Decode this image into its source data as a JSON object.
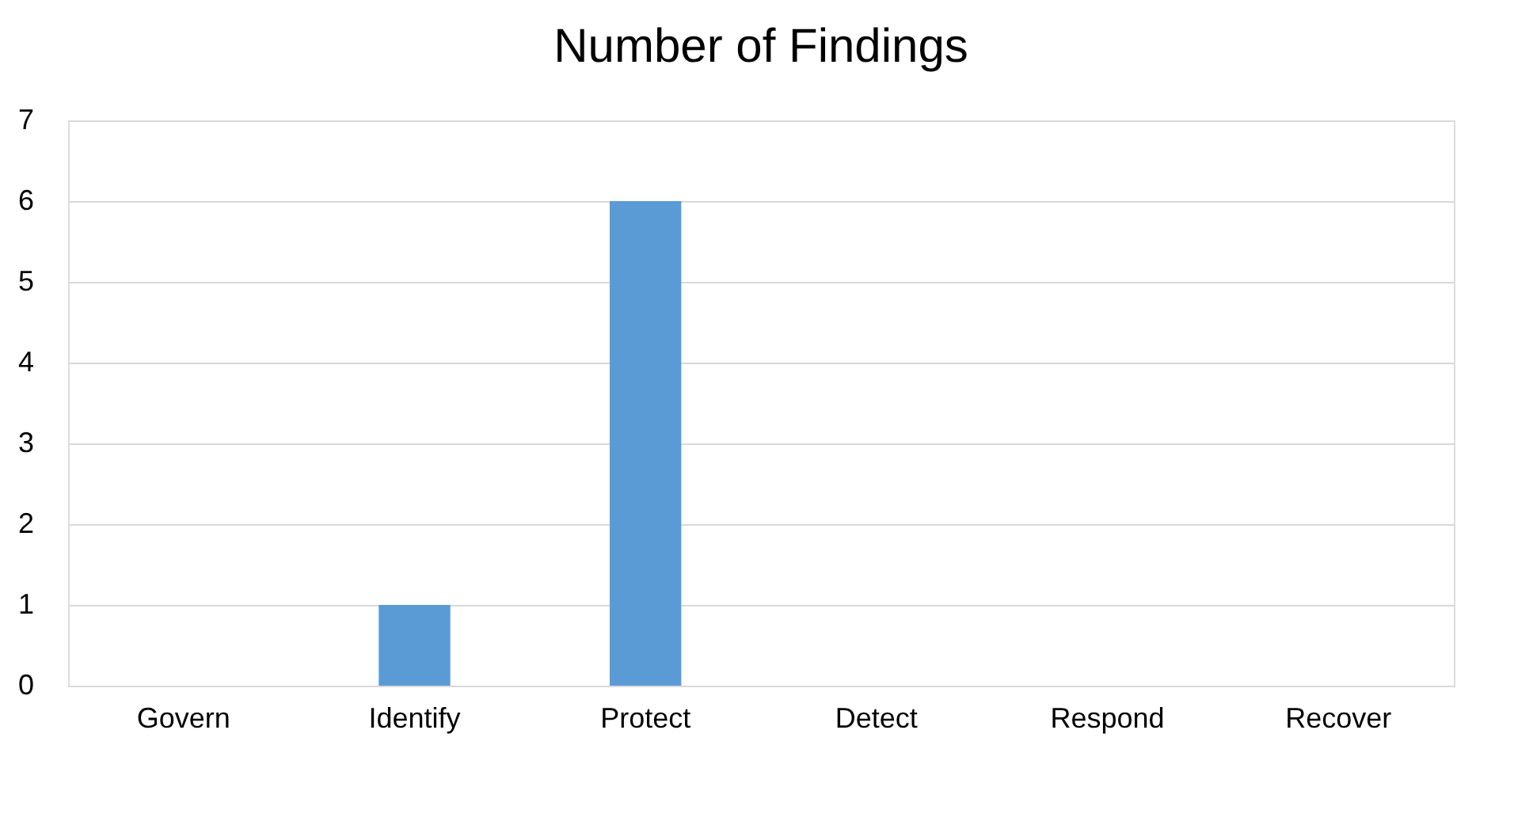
{
  "chart_data": {
    "type": "bar",
    "title": "Number of Findings",
    "categories": [
      "Govern",
      "Identify",
      "Protect",
      "Detect",
      "Respond",
      "Recover"
    ],
    "values": [
      0,
      1,
      6,
      0,
      0,
      0
    ],
    "color": "#5b9bd5",
    "ylim": [
      0,
      7
    ],
    "yticks": [
      0,
      1,
      2,
      3,
      4,
      5,
      6,
      7
    ],
    "grid": "y"
  }
}
